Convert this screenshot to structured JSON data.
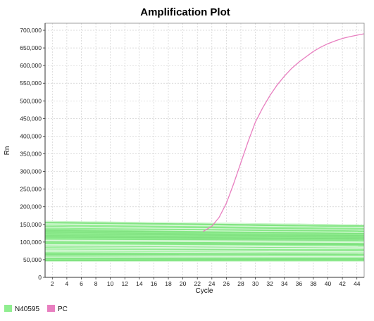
{
  "chart_data": {
    "type": "line",
    "title": "Amplification Plot",
    "xlabel": "Cycle",
    "ylabel": "Rn",
    "xlim": [
      1,
      45
    ],
    "ylim": [
      0,
      720000
    ],
    "xticks": [
      2,
      4,
      6,
      8,
      10,
      12,
      14,
      16,
      18,
      20,
      22,
      24,
      26,
      28,
      30,
      32,
      34,
      36,
      38,
      40,
      42,
      44
    ],
    "yticks": [
      0,
      50000,
      100000,
      150000,
      200000,
      250000,
      300000,
      350000,
      400000,
      450000,
      500000,
      550000,
      600000,
      650000,
      700000
    ],
    "ytick_labels": [
      "0",
      "50,000",
      "100,000",
      "150,000",
      "200,000",
      "250,000",
      "300,000",
      "350,000",
      "400,000",
      "450,000",
      "500,000",
      "550,000",
      "600,000",
      "650,000",
      "700,000"
    ],
    "grid": true,
    "legend_position": "bottom-left",
    "series": [
      {
        "name": "N40595",
        "color": "#90ee90",
        "kind": "band",
        "x": [
          1,
          45
        ],
        "y_low": [
          45000,
          45000
        ],
        "y_high": [
          160000,
          150000
        ]
      },
      {
        "name": "PC",
        "color": "#e87fc0",
        "kind": "line",
        "x": [
          22.8,
          24,
          25,
          26,
          27,
          28,
          29,
          30,
          31,
          32,
          33,
          34,
          35,
          36,
          37,
          38,
          39,
          40,
          41,
          42,
          43,
          44,
          45
        ],
        "y": [
          130000,
          145000,
          170000,
          210000,
          265000,
          325000,
          385000,
          440000,
          480000,
          515000,
          545000,
          570000,
          592000,
          610000,
          625000,
          640000,
          652000,
          662000,
          670000,
          677000,
          682000,
          686000,
          690000
        ]
      }
    ]
  }
}
